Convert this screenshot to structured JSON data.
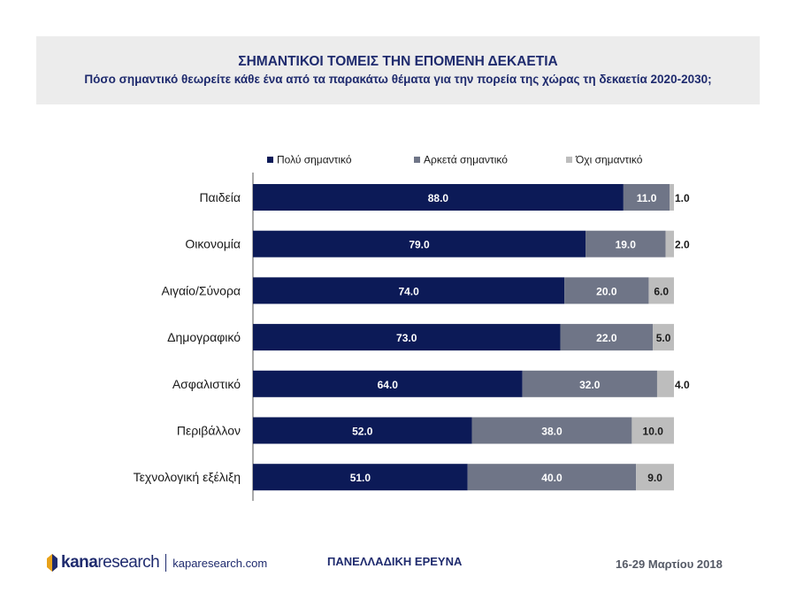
{
  "chart_data": {
    "type": "bar",
    "orientation": "horizontal",
    "stacked": true,
    "title": "ΣΗΜΑΝΤΙΚΟΙ ΤΟΜΕΙΣ ΤΗΝ ΕΠΟΜΕΝΗ ΔΕΚΑΕΤΙΑ",
    "subtitle": "Πόσο σημαντικό θεωρείτε κάθε ένα από τα παρακάτω θέματα για την πορεία της χώρας τη δεκαετία 2020-2030;",
    "categories": [
      "Παιδεία",
      "Οικονομία",
      "Αιγαίο/Σύνορα",
      "Δημογραφικό",
      "Ασφαλιστικό",
      "Περιβάλλον",
      "Τεχνολογική εξέλιξη"
    ],
    "series": [
      {
        "name": "Πολύ σημαντικό",
        "color": "#0c1a57",
        "values": [
          88.0,
          79.0,
          74.0,
          73.0,
          64.0,
          52.0,
          51.0
        ]
      },
      {
        "name": "Αρκετά σημαντικό",
        "color": "#6f7587",
        "values": [
          11.0,
          19.0,
          20.0,
          22.0,
          32.0,
          38.0,
          40.0
        ]
      },
      {
        "name": "Όχι σημαντικό",
        "color": "#bdbdbd",
        "values": [
          1.0,
          2.0,
          6.0,
          5.0,
          4.0,
          10.0,
          9.0
        ]
      }
    ],
    "xlim": [
      0,
      100
    ],
    "legend_position": "top",
    "grid": false
  },
  "footer": {
    "logo_kana": "kana",
    "logo_research": "research",
    "logo_url": "kaparesearch.com",
    "survey_label": "ΠΑΝΕΛΛΑΔΙΚΗ ΕΡΕΥΝΑ",
    "date": "16-29 Μαρτίου 2018"
  }
}
